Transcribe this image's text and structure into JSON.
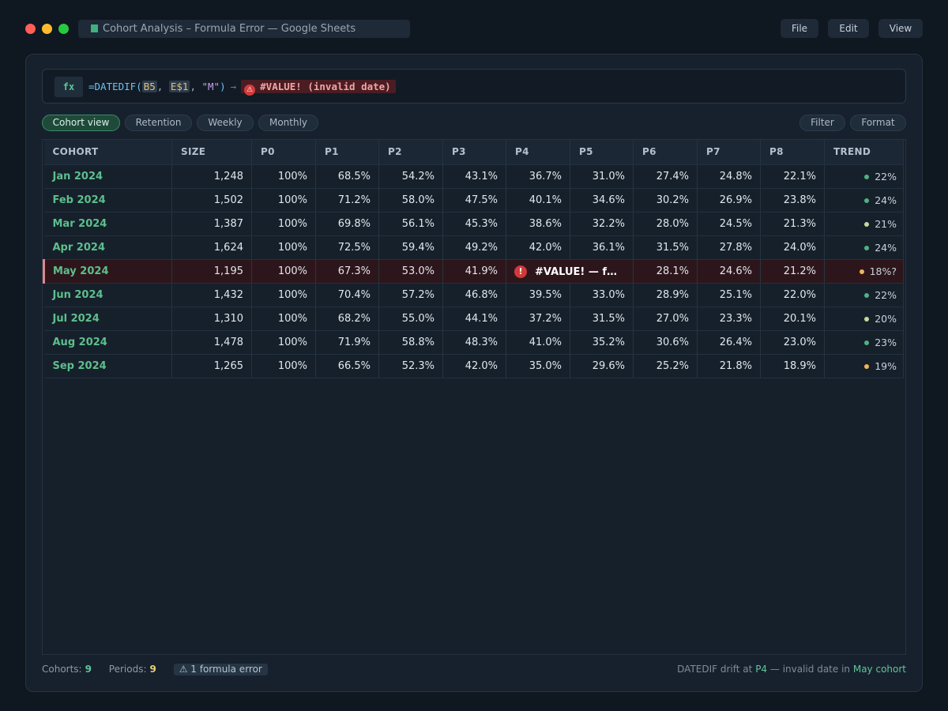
{
  "window": {
    "title": "Cohort Analysis – Formula Error — Google Sheets",
    "menu": [
      "File",
      "Edit",
      "View"
    ]
  },
  "formula_bar": {
    "fx_label": "fx",
    "fn": "=DATEDIF(",
    "ref1": "B5",
    "ref2": "E$1",
    "arg": "\"M\"",
    "close": ")",
    "arrow": "→",
    "error_icon": "⚠",
    "error": "#VALUE! (invalid date)"
  },
  "tabs": {
    "cohort_view": "Cohort view",
    "retention": "Retention",
    "weekly": "Weekly",
    "monthly": "Monthly",
    "filter": "Filter",
    "format": "Format"
  },
  "table": {
    "columns": [
      "COHORT",
      "SIZE",
      "P0",
      "P1",
      "P2",
      "P3",
      "P4",
      "P5",
      "P6",
      "P7",
      "P8",
      "TREND"
    ],
    "rows": [
      {
        "cohort": "Jan 2024",
        "size": "1,248",
        "p": [
          "100%",
          "68.5%",
          "54.2%",
          "43.1%",
          "36.7%",
          "31.0%",
          "27.4%",
          "24.8%",
          "22.1%"
        ],
        "trend": "22%",
        "trend_color": "#4fb27f"
      },
      {
        "cohort": "Feb 2024",
        "size": "1,502",
        "p": [
          "100%",
          "71.2%",
          "58.0%",
          "47.5%",
          "40.1%",
          "34.6%",
          "30.2%",
          "26.9%",
          "23.8%"
        ],
        "trend": "24%",
        "trend_color": "#4fb27f"
      },
      {
        "cohort": "Mar 2024",
        "size": "1,387",
        "p": [
          "100%",
          "69.8%",
          "56.1%",
          "45.3%",
          "38.6%",
          "32.2%",
          "28.0%",
          "24.5%",
          "21.3%"
        ],
        "trend": "21%",
        "trend_color": "#c8d79a"
      },
      {
        "cohort": "Apr 2024",
        "size": "1,624",
        "p": [
          "100%",
          "72.5%",
          "59.4%",
          "49.2%",
          "42.0%",
          "36.1%",
          "31.5%",
          "27.8%",
          "24.0%"
        ],
        "trend": "24%",
        "trend_color": "#4fb27f"
      },
      {
        "cohort": "May 2024",
        "size": "1,195",
        "p": [
          "100%",
          "67.3%",
          "53.0%",
          "41.9%",
          "#VALUE! — f…",
          "28.1%",
          "24.6%",
          "21.2%"
        ],
        "trend": "18%?",
        "trend_color": "#f0b45a",
        "error": true
      },
      {
        "cohort": "Jun 2024",
        "size": "1,432",
        "p": [
          "100%",
          "70.4%",
          "57.2%",
          "46.8%",
          "39.5%",
          "33.0%",
          "28.9%",
          "25.1%",
          "22.0%"
        ],
        "trend": "22%",
        "trend_color": "#4fb27f"
      },
      {
        "cohort": "Jul 2024",
        "size": "1,310",
        "p": [
          "100%",
          "68.2%",
          "55.0%",
          "44.1%",
          "37.2%",
          "31.5%",
          "27.0%",
          "23.3%",
          "20.1%"
        ],
        "trend": "20%",
        "trend_color": "#c8d79a"
      },
      {
        "cohort": "Aug 2024",
        "size": "1,478",
        "p": [
          "100%",
          "71.9%",
          "58.8%",
          "48.3%",
          "41.0%",
          "35.2%",
          "30.6%",
          "26.4%",
          "23.0%"
        ],
        "trend": "23%",
        "trend_color": "#4fb27f"
      },
      {
        "cohort": "Sep 2024",
        "size": "1,265",
        "p": [
          "100%",
          "66.5%",
          "52.3%",
          "42.0%",
          "35.0%",
          "29.6%",
          "25.2%",
          "21.8%",
          "18.9%"
        ],
        "trend": "19%",
        "trend_color": "#f0b45a"
      }
    ]
  },
  "footer": {
    "cohorts_label": "Cohorts:",
    "cohorts_value": "9",
    "periods_label": "Periods:",
    "periods_value": "9",
    "error_chip": "⚠ 1 formula error",
    "note_prefix": "DATEDIF drift at",
    "note_col": "P4",
    "note_middle": "— invalid date in",
    "note_cohort": "May cohort"
  },
  "colors": {
    "accent": "#5fc69a",
    "error": "#d03a3a",
    "error_row": "#2d161b",
    "background": "#0f1720"
  },
  "icons": [
    "sheet-icon",
    "warning-icon",
    "error-icon",
    "trend-dot-icon"
  ]
}
